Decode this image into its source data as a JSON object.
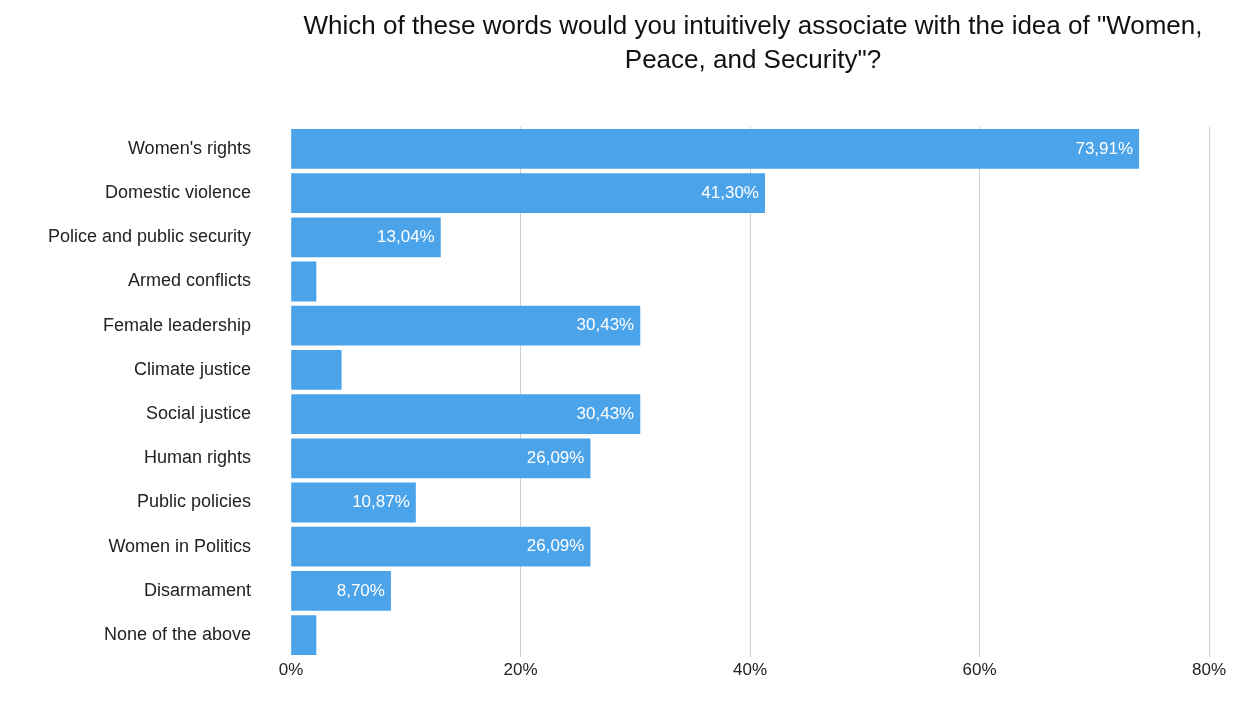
{
  "chart_data": {
    "type": "bar",
    "orientation": "horizontal",
    "title": "Which of these words would you intuitively associate with the idea of \"Women, Peace, and Security\"?",
    "categories": [
      "Women's rights",
      "Domestic violence",
      "Police and public security",
      "Armed conflicts",
      "Female leadership",
      "Climate justice",
      "Social justice",
      "Human rights",
      "Public policies",
      "Women in Politics",
      "Disarmament",
      "None of the above"
    ],
    "values": [
      73.91,
      41.3,
      13.04,
      2.2,
      30.43,
      4.4,
      30.43,
      26.09,
      10.87,
      26.09,
      8.7,
      2.2
    ],
    "value_labels": [
      "73,91%",
      "41,30%",
      "13,04%",
      null,
      "30,43%",
      null,
      "30,43%",
      "26,09%",
      "10,87%",
      "26,09%",
      "8,70%",
      null
    ],
    "color": "#4ba3ea",
    "xlim": [
      0,
      80
    ],
    "xticks": [
      {
        "value": 0,
        "label": "0%"
      },
      {
        "value": 20,
        "label": "20%"
      },
      {
        "value": 40,
        "label": "40%"
      },
      {
        "value": 60,
        "label": "60%"
      },
      {
        "value": 80,
        "label": "80%"
      }
    ],
    "grid": "x",
    "legend": false
  }
}
